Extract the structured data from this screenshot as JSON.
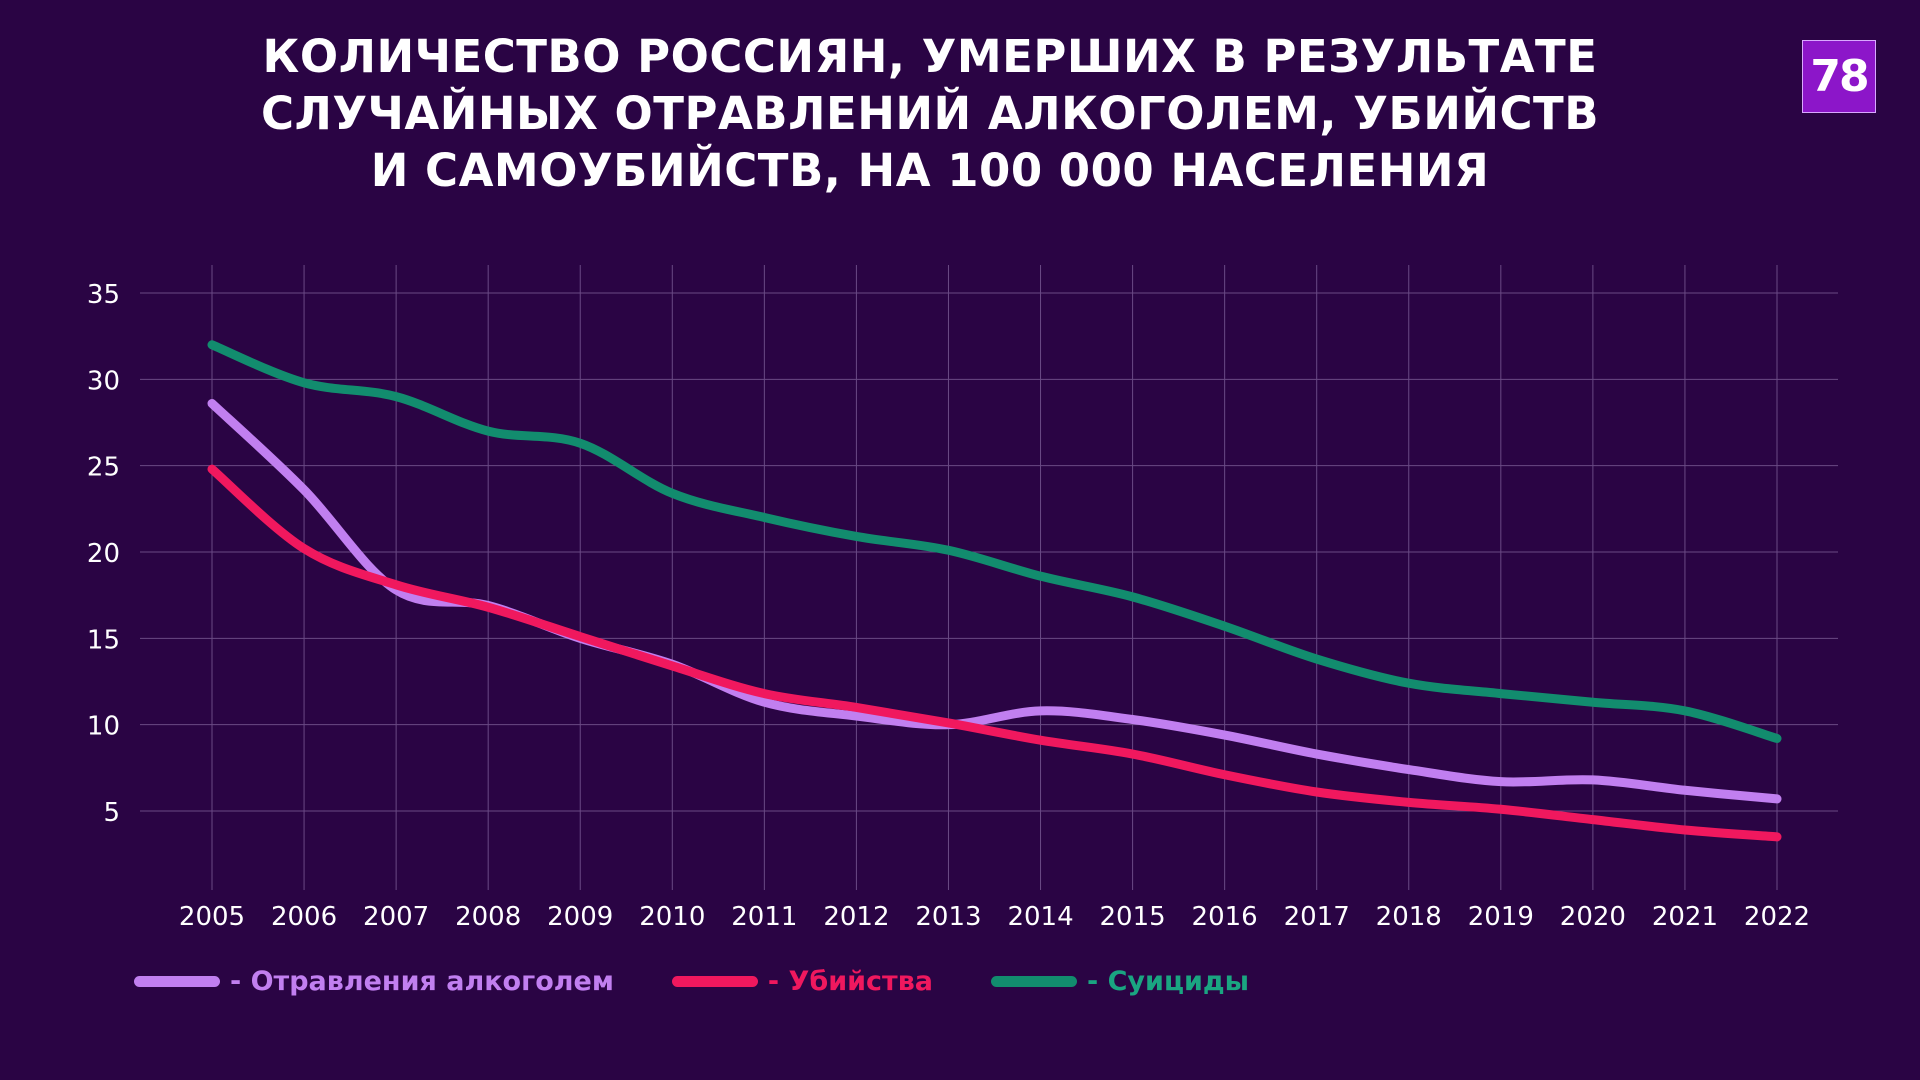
{
  "title_lines": [
    "КОЛИЧЕСТВО РОССИЯН, УМЕРШИХ В РЕЗУЛЬТАТЕ",
    "СЛУЧАЙНЫХ ОТРАВЛЕНИЙ АЛКОГОЛЕМ, УБИЙСТВ",
    "И САМОУБИЙСТВ, НА 100 000 НАСЕЛЕНИЯ"
  ],
  "logo": "78",
  "colors": {
    "background": "#2a0444",
    "grid": "#6a4a85",
    "logo_bg": "#8c16c9"
  },
  "chart_data": {
    "type": "line",
    "title": "КОЛИЧЕСТВО РОССИЯН, УМЕРШИХ В РЕЗУЛЬТАТЕ СЛУЧАЙНЫХ ОТРАВЛЕНИЙ АЛКОГОЛЕМ, УБИЙСТВ И САМОУБИЙСТВ, НА 100 000 НАСЕЛЕНИЯ",
    "x": [
      "2005",
      "2006",
      "2007",
      "2008",
      "2009",
      "2010",
      "2011",
      "2012",
      "2013",
      "2014",
      "2015",
      "2016",
      "2017",
      "2018",
      "2019",
      "2020",
      "2021",
      "2022"
    ],
    "yticks": [
      5,
      10,
      15,
      20,
      25,
      30,
      35
    ],
    "ylim": [
      5,
      35
    ],
    "grid": true,
    "smooth": true,
    "legend_position": "bottom-left",
    "series": [
      {
        "name": "- Отравления алкоголем",
        "color": "#c17ff0",
        "values": [
          28.6,
          23.6,
          17.8,
          16.9,
          15.0,
          13.5,
          11.3,
          10.5,
          10.0,
          10.8,
          10.3,
          9.4,
          8.3,
          7.4,
          6.7,
          6.8,
          6.2,
          5.7
        ]
      },
      {
        "name": "- Убийства",
        "color": "#f0185e",
        "values": [
          24.8,
          20.2,
          18.1,
          16.8,
          15.1,
          13.4,
          11.8,
          11.0,
          10.1,
          9.1,
          8.3,
          7.1,
          6.1,
          5.5,
          5.1,
          4.5,
          3.9,
          3.5
        ]
      },
      {
        "name": "- Суициды",
        "color": "#128c6e",
        "values": [
          32.0,
          29.8,
          29.0,
          27.0,
          26.3,
          23.4,
          22.0,
          20.9,
          20.1,
          18.6,
          17.4,
          15.7,
          13.8,
          12.4,
          11.8,
          11.3,
          10.8,
          9.2
        ]
      }
    ]
  }
}
